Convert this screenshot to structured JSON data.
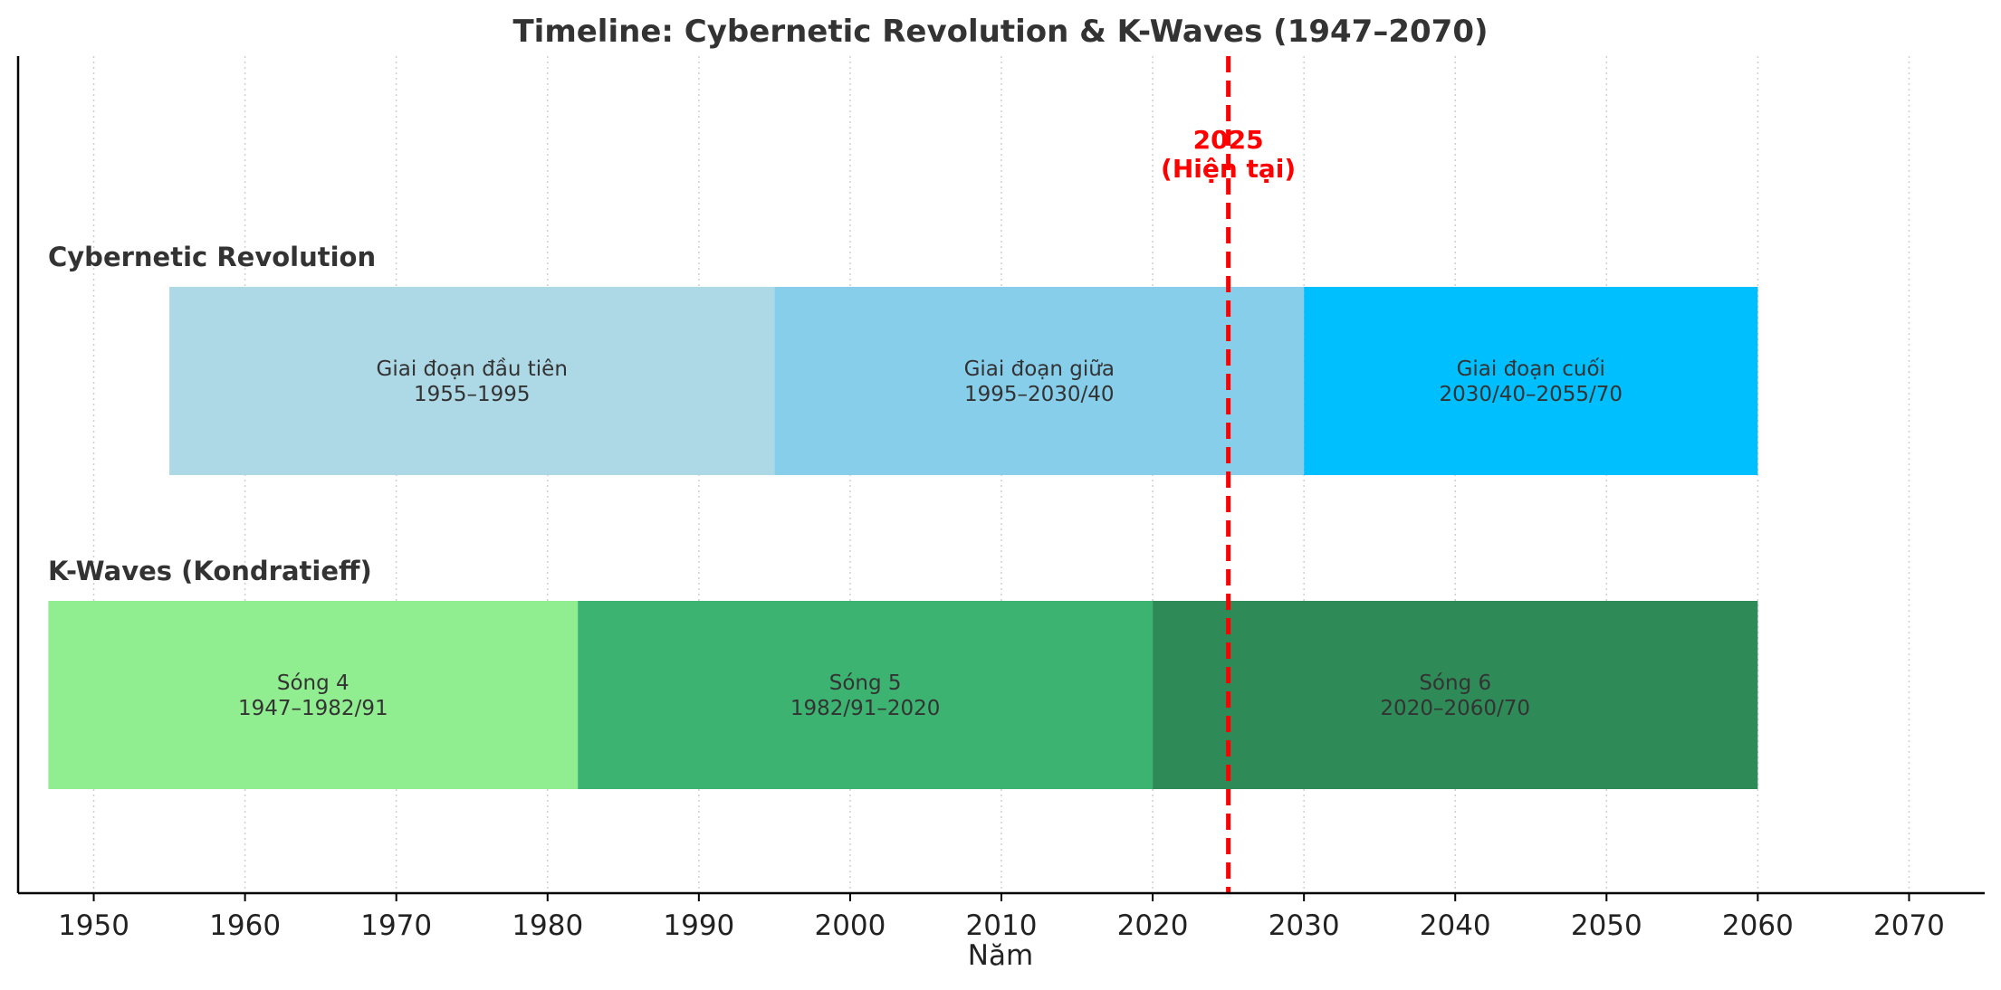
{
  "chart_data": {
    "type": "timeline",
    "title": "Timeline: Cybernetic Revolution & K-Waves (1947–2070)",
    "xlabel": "Năm",
    "xlim": [
      1945,
      2075
    ],
    "xticks": [
      1950,
      1960,
      1970,
      1980,
      1990,
      2000,
      2010,
      2020,
      2030,
      2040,
      2050,
      2060,
      2070
    ],
    "grid": "vertical-dotted",
    "rows": [
      {
        "label": "Cybernetic Revolution",
        "segments": [
          {
            "start": 1955,
            "end": 1995,
            "name": "Giai đoạn đầu tiên",
            "range": "1955–1995",
            "color": "#add8e6"
          },
          {
            "start": 1995,
            "end": 2030,
            "name": "Giai đoạn giữa",
            "range": "1995–2030/40",
            "color": "#87ceeb"
          },
          {
            "start": 2030,
            "end": 2060,
            "name": "Giai đoạn cuối",
            "range": "2030/40–2055/70",
            "color": "#00bfff"
          }
        ]
      },
      {
        "label": "K-Waves (Kondratieff)",
        "segments": [
          {
            "start": 1947,
            "end": 1982,
            "name": "Sóng 4",
            "range": "1947–1982/91",
            "color": "#90ee90"
          },
          {
            "start": 1982,
            "end": 2020,
            "name": "Sóng 5",
            "range": "1982/91–2020",
            "color": "#3cb371"
          },
          {
            "start": 2020,
            "end": 2060,
            "name": "Sóng 6",
            "range": "2020–2060/70",
            "color": "#2e8b57"
          }
        ]
      }
    ],
    "marker": {
      "x": 2025,
      "label_year": "2025",
      "label_note": "(Hiện tại)",
      "color": "#ff0000",
      "style": "dashed"
    }
  }
}
